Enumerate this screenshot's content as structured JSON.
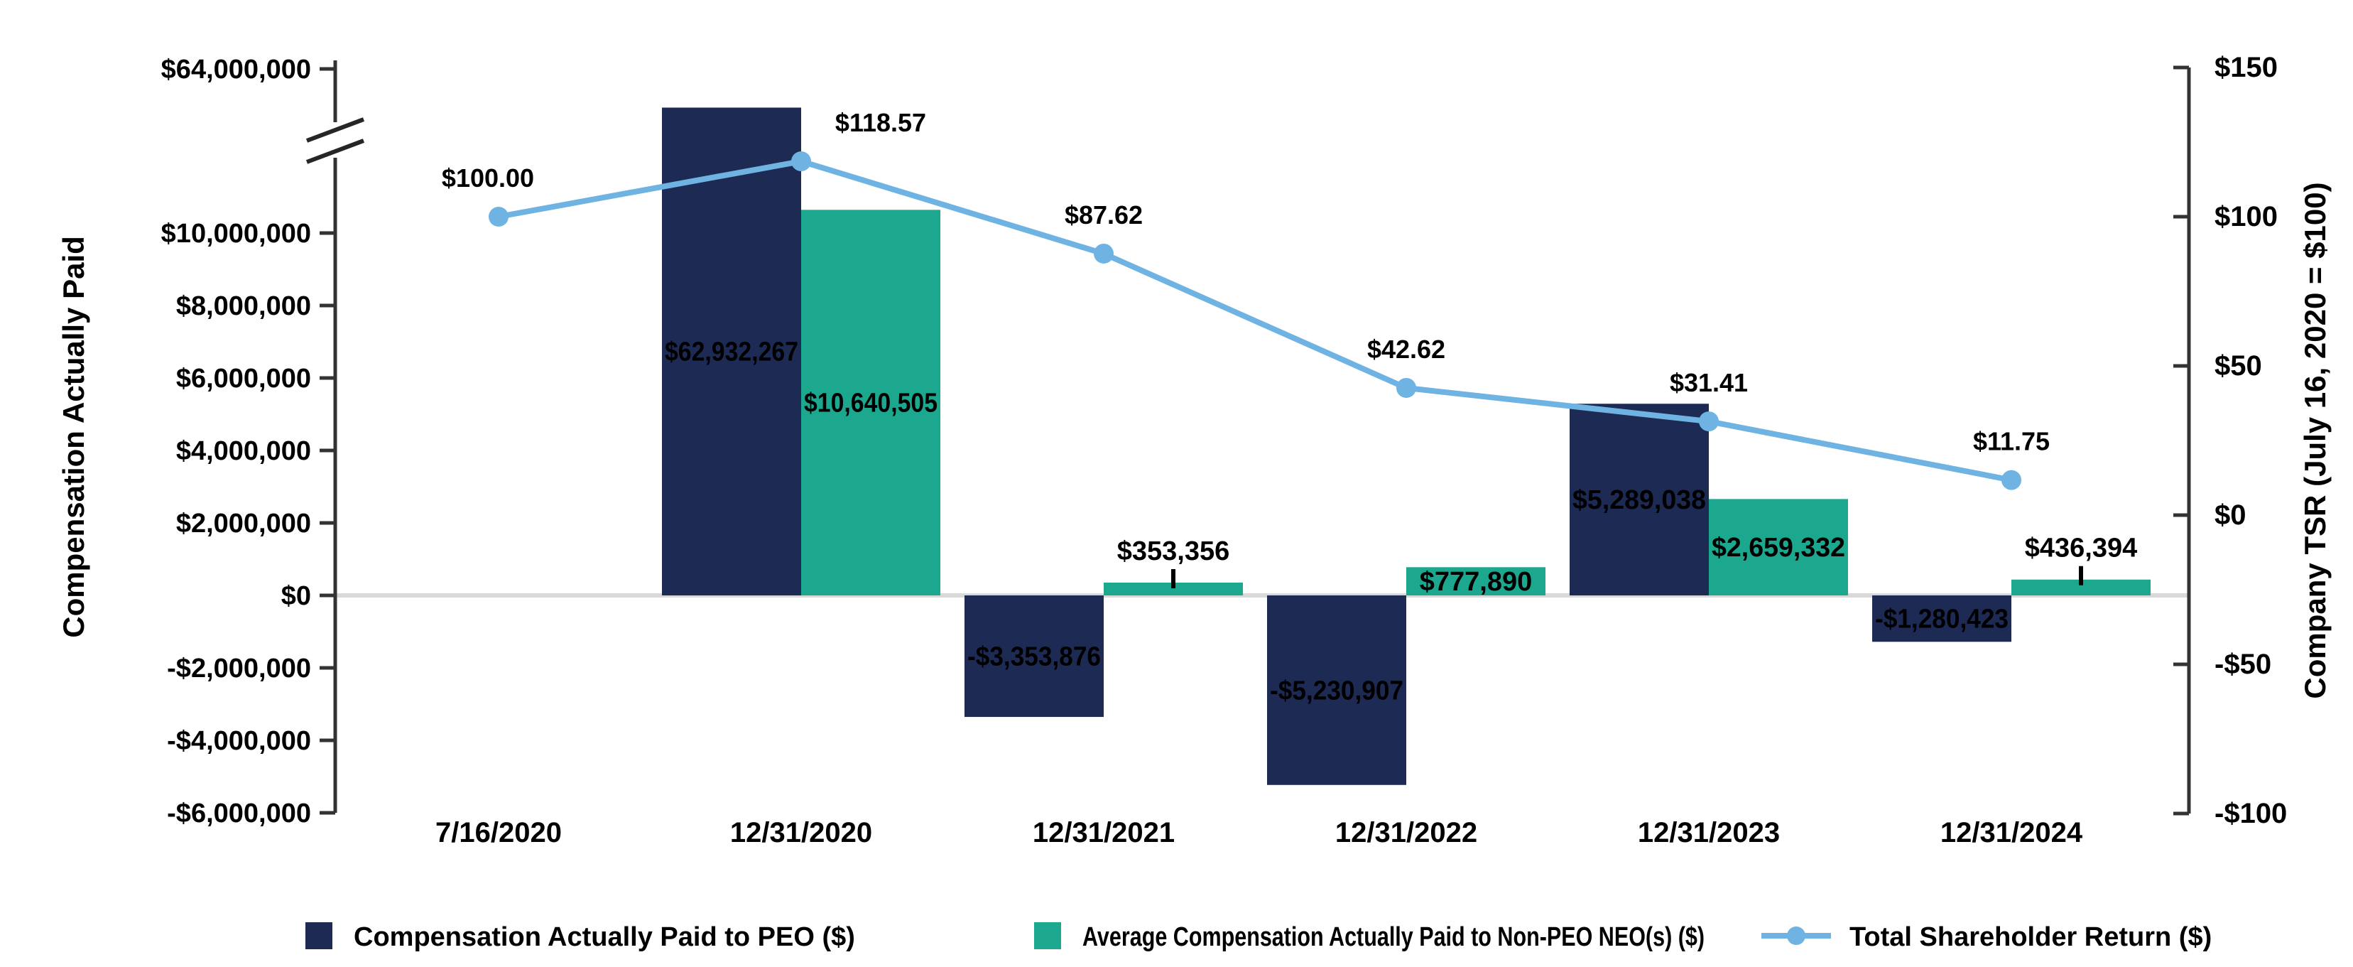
{
  "chart_data": {
    "type": "bar",
    "subtype": "grouped-bars-with-line-dual-axis",
    "categories": [
      "7/16/2020",
      "12/31/2020",
      "12/31/2021",
      "12/31/2022",
      "12/31/2023",
      "12/31/2024"
    ],
    "bar_series": [
      {
        "name": "Compensation Actually Paid to PEO ($)",
        "color": "#1C2A54",
        "values": [
          null,
          62932267,
          -3353876,
          -5230907,
          5289038,
          -1280423
        ],
        "labels": [
          null,
          "$62,932,267",
          "-$3,353,876",
          "-$5,230,907",
          "$5,289,038",
          "-$1,280,423"
        ],
        "label_style": [
          null,
          "inside",
          "inside",
          "inside",
          "inside",
          "inside"
        ]
      },
      {
        "name": "Average Compensation Actually Paid to Non-PEO NEO(s) ($)",
        "color": "#1BA88F",
        "values": [
          null,
          10640505,
          353356,
          777890,
          2659332,
          436394
        ],
        "labels": [
          null,
          "$10,640,505",
          "$353,356",
          "$777,890",
          "$2,659,332",
          "$436,394"
        ],
        "label_style": [
          null,
          "inside",
          "above-leader",
          "inside",
          "inside",
          "above-leader"
        ]
      }
    ],
    "line_series": {
      "name": "Total Shareholder Return ($)",
      "color": "#6FB3E3",
      "values": [
        100.0,
        118.57,
        87.62,
        42.62,
        31.41,
        11.75
      ],
      "labels": [
        "$100.00",
        "$118.57",
        "$87.62",
        "$42.62",
        "$31.41",
        "$11.75"
      ],
      "label_dx": [
        -15,
        112,
        0,
        0,
        0,
        0
      ]
    },
    "left_axis": {
      "title": "Compensation Actually Paid",
      "tick_values": [
        64000000,
        10000000,
        8000000,
        6000000,
        4000000,
        2000000,
        0,
        -2000000,
        -4000000,
        -6000000
      ],
      "tick_labels": [
        "$64,000,000",
        "$10,000,000",
        "$8,000,000",
        "$6,000,000",
        "$4,000,000",
        "$2,000,000",
        "$0",
        "-$2,000,000",
        "-$4,000,000",
        "-$6,000,000"
      ],
      "has_break": true
    },
    "right_axis": {
      "title": "Company TSR (July 16, 2020 = $100)",
      "tick_values": [
        150,
        100,
        50,
        0,
        -50,
        -100
      ],
      "tick_labels": [
        "$150",
        "$100",
        "$50",
        "$0",
        "-$50",
        "-$100"
      ],
      "max": 150,
      "min": -100
    },
    "grid": "zero-line-only",
    "zero_line_color": "#D9D9D9",
    "axis_color": "#333333",
    "legend_position": "bottom"
  },
  "legend": {
    "items": [
      {
        "label": "Compensation Actually Paid to PEO ($)",
        "swatch": "navy-square"
      },
      {
        "label": "Average Compensation Actually Paid to Non-PEO NEO(s) ($)",
        "swatch": "teal-square"
      },
      {
        "label": "Total Shareholder Return ($)",
        "swatch": "blue-line-marker"
      }
    ]
  }
}
